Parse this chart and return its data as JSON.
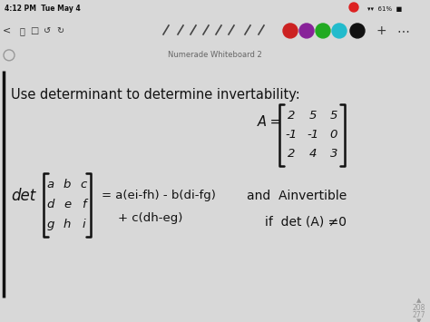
{
  "bg_color": "#d8d8d8",
  "toolbar_bg": "#c8c8c8",
  "whiteboard_bg": "#ffffff",
  "second_bar_bg": "#e8e8e8",
  "title": "Numerade Whiteboard 2",
  "title_color": "#666666",
  "time_text": "4:12 PM  Tue May 4",
  "status_right": "☀ ⚡ 61% ■",
  "ink_color": "#111111",
  "line1": "Use determinant to determine invertability:",
  "matrix_A": [
    [
      2,
      5,
      5
    ],
    [
      -1,
      -1,
      0
    ],
    [
      2,
      4,
      3
    ]
  ],
  "matrix_gen": [
    [
      "a",
      "b",
      "c"
    ],
    [
      "d",
      "e",
      "f"
    ],
    [
      "g",
      "h",
      "i"
    ]
  ],
  "formula1": "= a(ei-fh) - b(di-fg)",
  "formula2": "+ c(dh-eg)",
  "and_text": "and  Ainvertible",
  "if_text": "if  det (A) ≠0",
  "page_up": "208",
  "page_down": "277",
  "dot_colors": [
    "#cc2222",
    "#882299",
    "#22aa22",
    "#22bbcc",
    "#111111"
  ]
}
